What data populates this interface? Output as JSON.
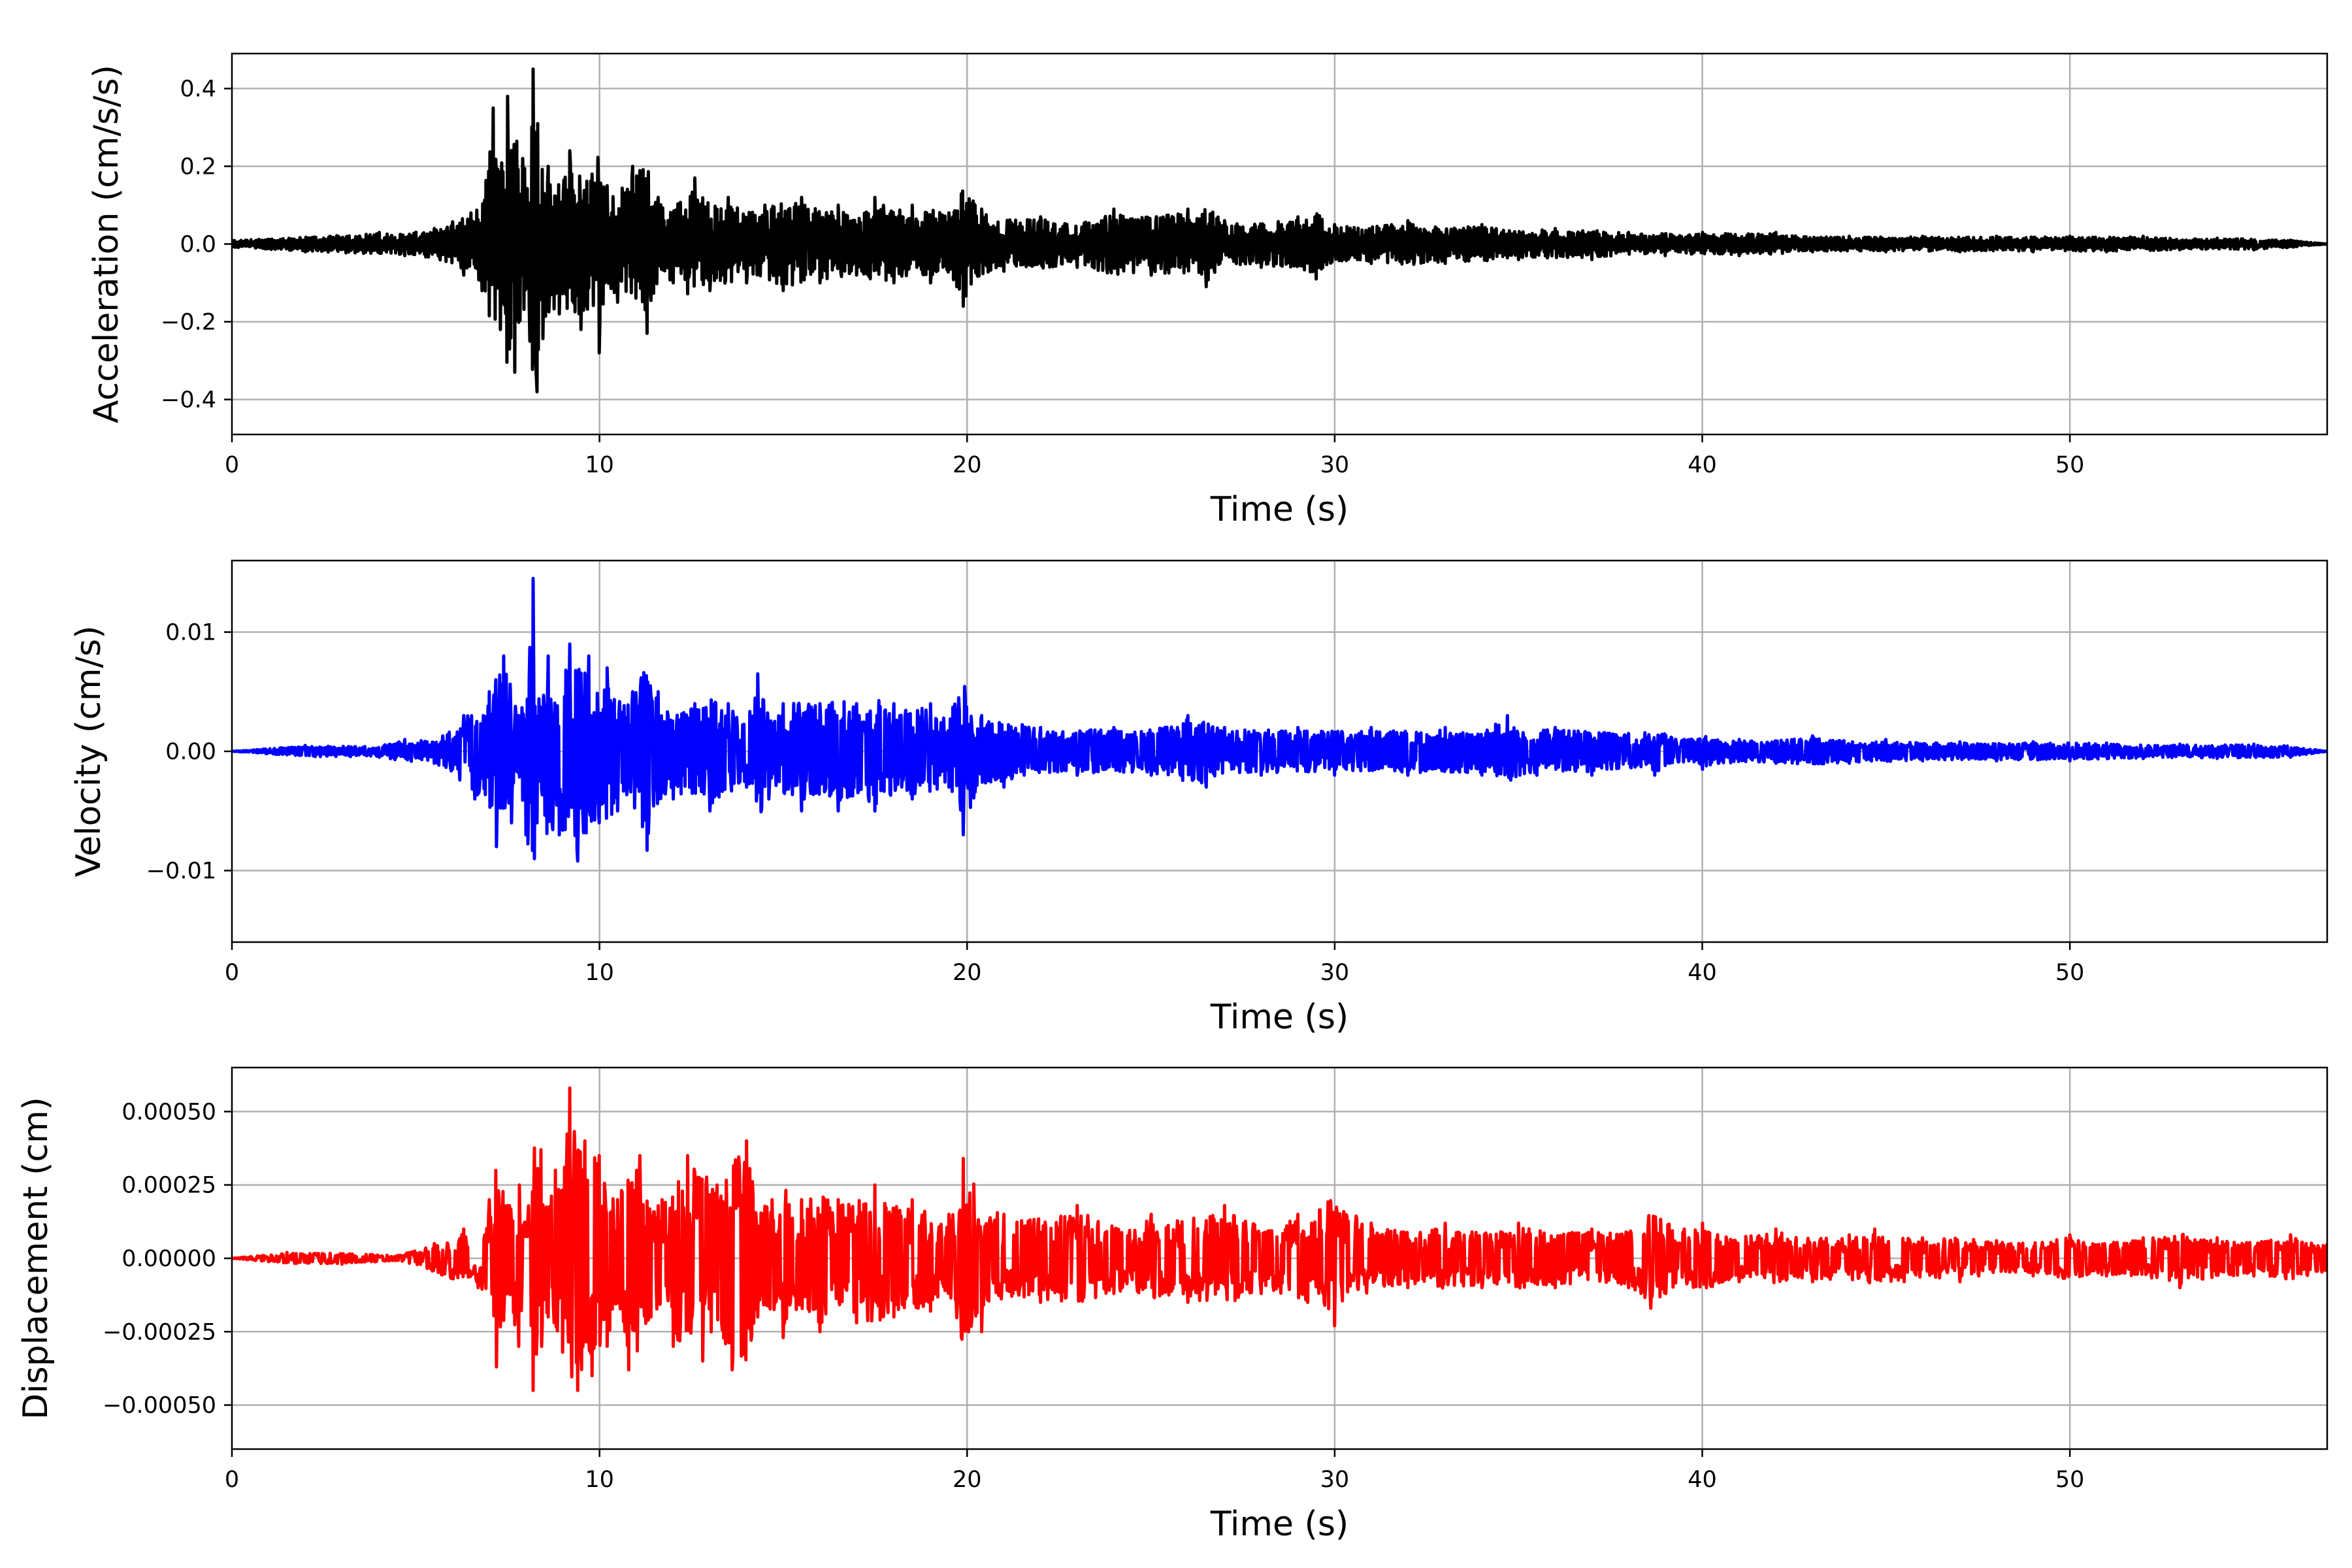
{
  "chart_data": [
    {
      "type": "line",
      "id": "acceleration",
      "xlabel": "Time (s)",
      "ylabel": "Acceleration (cm/s/s)",
      "xlim": [
        0,
        57
      ],
      "ylim": [
        -0.49,
        0.49
      ],
      "xticks": [
        0,
        10,
        20,
        30,
        40,
        50
      ],
      "xtick_labels": [
        "0",
        "10",
        "20",
        "30",
        "40",
        "50"
      ],
      "yticks": [
        -0.4,
        -0.2,
        0.0,
        0.2,
        0.4
      ],
      "ytick_labels": [
        "−0.4",
        "−0.2",
        "0.0",
        "0.2",
        "0.4"
      ],
      "grid": true,
      "color": "#000000",
      "series": [
        {
          "x": [
            0,
            2,
            4,
            4.7,
            5.5,
            6.3,
            6.5,
            6.8,
            7.1,
            7.3,
            7.5,
            7.7,
            7.9,
            8.1,
            8.2,
            8.3,
            8.6,
            8.9,
            9.2,
            9.5,
            9.8,
            10.0,
            10.2,
            10.5,
            10.9,
            11.3,
            11.6,
            12.0,
            12.6,
            13.0,
            13.5,
            14.0,
            14.5,
            15.0,
            15.5,
            16.0,
            16.5,
            17.0,
            17.5,
            18.0,
            18.5,
            19.0,
            19.5,
            19.9,
            20.4,
            21.0,
            22.0,
            23.0,
            24.0,
            25.0,
            26.0,
            26.5,
            27.0,
            28.0,
            29.0,
            29.5,
            30.0,
            31.0,
            32.0,
            33.0,
            34.0,
            35.0,
            36.0,
            37.0,
            38.0,
            39.0,
            40.0,
            41.0,
            42.0,
            43.0,
            44.0,
            45.0,
            46.0,
            47.0,
            48.0,
            49.0,
            50.0,
            51.0,
            52.0,
            53.0,
            54.0,
            55.0,
            56.0,
            57.0
          ],
          "y": [
            0.01,
            -0.02,
            0.03,
            -0.03,
            0.04,
            -0.08,
            0.08,
            -0.12,
            0.35,
            -0.22,
            0.38,
            -0.33,
            0.22,
            -0.25,
            0.45,
            -0.38,
            0.2,
            -0.18,
            0.24,
            -0.22,
            0.18,
            -0.28,
            0.15,
            -0.15,
            0.2,
            -0.23,
            0.12,
            -0.1,
            0.17,
            -0.12,
            0.12,
            -0.1,
            0.1,
            -0.12,
            0.12,
            -0.1,
            0.1,
            -0.08,
            0.12,
            -0.1,
            0.1,
            -0.1,
            0.08,
            -0.16,
            0.09,
            -0.07,
            0.07,
            -0.06,
            0.09,
            -0.08,
            0.09,
            -0.11,
            0.06,
            -0.06,
            0.07,
            -0.09,
            0.05,
            -0.05,
            0.06,
            -0.05,
            0.05,
            -0.04,
            0.04,
            -0.04,
            0.03,
            -0.03,
            0.03,
            -0.03,
            0.03,
            -0.02,
            0.02,
            -0.02,
            0.02,
            -0.02,
            0.02,
            -0.02,
            0.02,
            -0.02,
            0.02,
            -0.015,
            0.015,
            -0.015,
            0.01,
            0.0
          ]
        }
      ]
    },
    {
      "type": "line",
      "id": "velocity",
      "xlabel": "Time (s)",
      "ylabel": "Velocity (cm/s)",
      "xlim": [
        0,
        57
      ],
      "ylim": [
        -0.016,
        0.016
      ],
      "xticks": [
        0,
        10,
        20,
        30,
        40,
        50
      ],
      "xtick_labels": [
        "0",
        "10",
        "20",
        "30",
        "40",
        "50"
      ],
      "yticks": [
        -0.01,
        0.0,
        0.01
      ],
      "ytick_labels": [
        "−0.01",
        "0.00",
        "0.01"
      ],
      "grid": true,
      "color": "#0000ff",
      "series": [
        {
          "x": [
            0,
            2,
            4,
            4.7,
            5.5,
            6.3,
            6.6,
            7.0,
            7.2,
            7.4,
            7.6,
            7.8,
            8.0,
            8.2,
            8.3,
            8.6,
            8.9,
            9.2,
            9.4,
            9.7,
            10.0,
            10.2,
            10.5,
            10.9,
            11.3,
            11.6,
            12.0,
            12.6,
            13.0,
            13.5,
            14.0,
            14.3,
            14.6,
            15.0,
            15.5,
            16.0,
            16.5,
            17.0,
            17.5,
            18.0,
            18.5,
            19.0,
            19.5,
            19.9,
            20.4,
            21.0,
            22.0,
            23.0,
            24.0,
            25.0,
            26.0,
            26.5,
            27.0,
            28.0,
            29.0,
            30.0,
            31.0,
            32.0,
            33.0,
            34.0,
            34.7,
            35.5,
            36.0,
            37.0,
            38.0,
            38.7,
            39.5,
            40.0,
            41.0,
            42.0,
            43.0,
            44.0,
            45.0,
            46.0,
            47.0,
            48.0,
            49.0,
            50.0,
            51.0,
            52.0,
            53.0,
            54.0,
            55.0,
            56.0,
            57.0
          ],
          "y": [
            0.0,
            0.0005,
            -0.0005,
            0.001,
            -0.001,
            0.003,
            -0.004,
            0.005,
            -0.008,
            0.008,
            -0.006,
            0.003,
            -0.007,
            0.0145,
            -0.006,
            0.008,
            -0.007,
            0.009,
            -0.0092,
            0.008,
            -0.006,
            0.007,
            -0.005,
            0.005,
            -0.0083,
            0.005,
            -0.004,
            0.004,
            -0.005,
            0.004,
            -0.003,
            0.0065,
            -0.004,
            0.004,
            -0.005,
            0.004,
            -0.005,
            0.004,
            -0.005,
            0.004,
            -0.004,
            0.004,
            -0.003,
            -0.007,
            0.003,
            -0.003,
            0.002,
            -0.002,
            0.002,
            -0.002,
            0.003,
            -0.003,
            0.002,
            -0.002,
            0.002,
            -0.002,
            0.002,
            -0.002,
            0.002,
            -0.002,
            0.003,
            -0.002,
            0.002,
            -0.002,
            0.0015,
            -0.002,
            0.001,
            -0.0015,
            0.001,
            -0.001,
            0.0013,
            -0.001,
            0.001,
            -0.0008,
            0.0008,
            -0.0008,
            0.0008,
            -0.0008,
            0.0007,
            -0.0006,
            0.0006,
            -0.0006,
            0.0006,
            -0.0005,
            0.0
          ]
        }
      ]
    },
    {
      "type": "line",
      "id": "displacement",
      "xlabel": "Time (s)",
      "ylabel": "Displacement (cm)",
      "xlim": [
        0,
        57
      ],
      "ylim": [
        -0.00065,
        0.00065
      ],
      "xticks": [
        0,
        10,
        20,
        30,
        40,
        50
      ],
      "xtick_labels": [
        "0",
        "10",
        "20",
        "30",
        "40",
        "50"
      ],
      "yticks": [
        -0.0005,
        -0.00025,
        0.0,
        0.00025,
        0.0005
      ],
      "ytick_labels": [
        "−0.00050",
        "−0.00025",
        "0.00000",
        "0.00025",
        "0.00050"
      ],
      "grid": true,
      "color": "#ff0000",
      "series": [
        {
          "x": [
            0,
            1.5,
            3,
            4.5,
            5.5,
            6.3,
            6.7,
            7.0,
            7.2,
            7.5,
            7.8,
            8.0,
            8.2,
            8.4,
            8.6,
            8.8,
            9.0,
            9.2,
            9.4,
            9.6,
            9.8,
            10.0,
            10.2,
            10.5,
            10.8,
            11.1,
            11.4,
            11.7,
            12.0,
            12.4,
            12.8,
            13.2,
            13.6,
            14.0,
            14.3,
            14.7,
            15.0,
            15.5,
            16.0,
            16.5,
            17.0,
            17.5,
            18.0,
            18.5,
            19.0,
            19.5,
            19.9,
            20.4,
            21.0,
            22.0,
            23.0,
            24.0,
            25.0,
            26.0,
            27.0,
            28.0,
            29.0,
            30.0,
            31.0,
            32.0,
            33.0,
            34.0,
            35.0,
            36.0,
            37.0,
            38.0,
            38.6,
            39.5,
            40.0,
            41.0,
            42.0,
            43.0,
            44.0,
            44.7,
            45.5,
            46.0,
            47.0,
            48.0,
            49.0,
            50.0,
            51.0,
            52.0,
            53.0,
            54.0,
            55.0,
            56.0,
            57.0
          ],
          "y": [
            0.0,
            2e-05,
            -2e-05,
            1e-05,
            5e-05,
            0.0001,
            -0.0001,
            0.0002,
            -0.00037,
            0.00018,
            -0.0003,
            0.0001,
            -0.00045,
            0.00037,
            -0.0002,
            0.0003,
            -0.00032,
            0.00058,
            -0.00045,
            0.0004,
            -0.0004,
            0.00035,
            -0.0003,
            0.0002,
            -0.00038,
            0.00035,
            -0.0002,
            0.0002,
            -0.0003,
            0.00035,
            -0.00035,
            0.00025,
            -0.00038,
            0.0004,
            -0.0002,
            0.0002,
            -0.00027,
            0.0002,
            -0.00025,
            0.0002,
            -0.00022,
            0.00025,
            -0.0002,
            0.0002,
            -0.00018,
            0.00015,
            0.00034,
            -0.00025,
            0.00015,
            -0.00015,
            0.00018,
            -0.00012,
            0.00015,
            -0.00015,
            0.00018,
            -0.00012,
            0.00015,
            -0.00023,
            0.00012,
            -0.0001,
            0.00012,
            -0.0001,
            0.00012,
            -0.0001,
            0.0001,
            -0.0001,
            -0.00017,
            0.0001,
            0.00012,
            -8e-05,
            0.0001,
            -8e-05,
            8e-05,
            0.0001,
            -8e-05,
            7e-05,
            -8e-05,
            6e-05,
            -6e-05,
            8e-05,
            -6e-05,
            7e-05,
            -0.0001,
            7e-05,
            -6e-05,
            8e-05,
            5e-05
          ]
        }
      ]
    }
  ]
}
